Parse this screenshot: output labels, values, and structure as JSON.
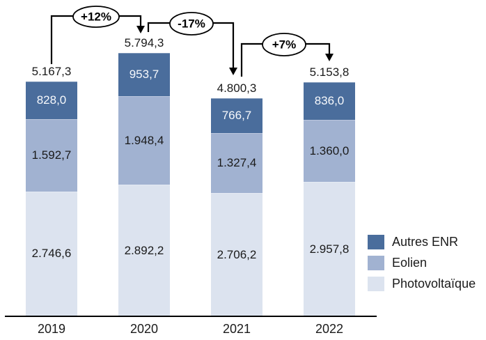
{
  "chart_data": {
    "type": "bar",
    "stacked": true,
    "title": "",
    "xlabel": "",
    "ylabel": "",
    "grid": false,
    "legend_position": "right",
    "stack_order": "first series on top",
    "ylim": [
      0,
      5794.3
    ],
    "categories": [
      "2019",
      "2020",
      "2021",
      "2022"
    ],
    "series": [
      {
        "name": "Autres ENR",
        "color": "#4a6d9c",
        "label_color": "#f7f9fc",
        "values": [
          828.0,
          953.7,
          766.7,
          836.0
        ],
        "labels": [
          "828,0",
          "953,7",
          "766,7",
          "836,0"
        ]
      },
      {
        "name": "Eolien",
        "color": "#a1b2d1",
        "label_color": "#1a1a1a",
        "values": [
          1592.7,
          1948.4,
          1327.4,
          1360.0
        ],
        "labels": [
          "1.592,7",
          "1.948,4",
          "1.327,4",
          "1.360,0"
        ]
      },
      {
        "name": "Photovoltaïque",
        "color": "#dce3ef",
        "label_color": "#1a1a1a",
        "values": [
          2746.6,
          2892.2,
          2706.2,
          2957.8
        ],
        "labels": [
          "2.746,6",
          "2.892,2",
          "2.706,2",
          "2.957,8"
        ]
      }
    ],
    "totals": {
      "values": [
        5167.3,
        5794.3,
        4800.3,
        5153.8
      ],
      "labels": [
        "5.167,3",
        "5.794,3",
        "4.800,3",
        "5.153,8"
      ]
    },
    "annotations": [
      {
        "label": "+12%",
        "from": "2019",
        "to": "2020"
      },
      {
        "label": "-17%",
        "from": "2020",
        "to": "2021"
      },
      {
        "label": "+7%",
        "from": "2021",
        "to": "2022"
      }
    ]
  },
  "colors": {
    "axis": "#000000",
    "background": "#ffffff",
    "annotation_stroke": "#000000",
    "annotation_fill": "#ffffff"
  }
}
